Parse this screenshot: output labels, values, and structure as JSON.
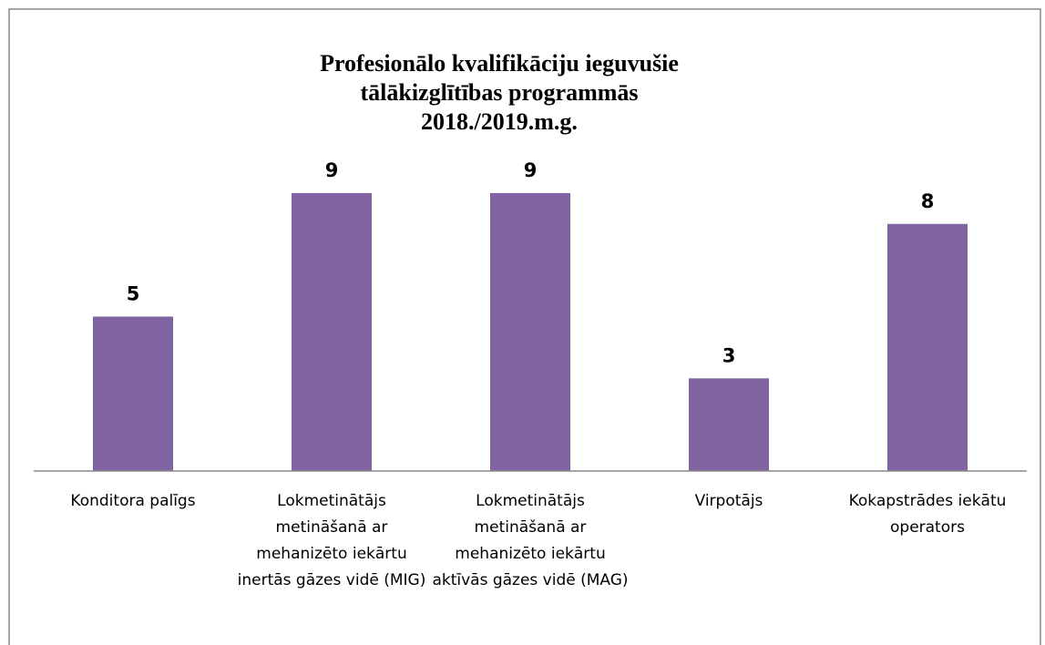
{
  "chart_data": {
    "type": "bar",
    "title": [
      "Profesionālo kvalifikāciju ieguvušie",
      "tālākizglītības programmās",
      "2018./2019.m.g."
    ],
    "categories": [
      "Konditora palīgs",
      "Lokmetinātājs metināšanā ar mehanizēto iekārtu inertās gāzes vidē (MIG)",
      "Lokmetinātājs metināšanā ar mehanizēto iekārtu aktīvās gāzes vidē (MAG)",
      "Virpotājs",
      "Kokapstrādes iekātu operators"
    ],
    "values": [
      5,
      9,
      9,
      3,
      8
    ],
    "color": "#8064a2",
    "ylim": [
      0,
      10
    ]
  }
}
